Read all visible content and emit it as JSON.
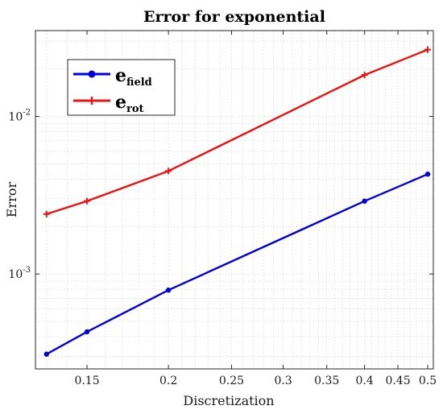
{
  "chart_data": {
    "type": "line",
    "title": "Error for exponential",
    "xlabel": "Discretization",
    "ylabel": "Error",
    "xscale": "log",
    "yscale": "log",
    "xlim": [
      0.125,
      0.51
    ],
    "ylim": [
      0.00025,
      0.035
    ],
    "x_ticks": [
      0.15,
      0.2,
      0.25,
      0.3,
      0.35,
      0.4,
      0.45,
      0.5
    ],
    "x_tick_labels": [
      "0.15",
      "0.2",
      "0.25",
      "0.3",
      "0.35",
      "0.4",
      "0.45",
      "0.5"
    ],
    "y_ticks": [
      0.001,
      0.01
    ],
    "y_tick_labels": [
      {
        "base": "10",
        "exp": "-3"
      },
      {
        "base": "10",
        "exp": "-2"
      }
    ],
    "grid": true,
    "legend_position": "top-left",
    "series": [
      {
        "name": "e",
        "name_subscript": "field",
        "color": "#0000dd",
        "marker": "circle",
        "x": [
          0.13,
          0.15,
          0.2,
          0.4,
          0.5
        ],
        "y": [
          0.00031,
          0.00043,
          0.00079,
          0.0029,
          0.0043
        ]
      },
      {
        "name": "e",
        "name_subscript": "rot",
        "color": "#ee1111",
        "marker": "plus",
        "x": [
          0.13,
          0.15,
          0.2,
          0.4,
          0.5
        ],
        "y": [
          0.0024,
          0.0029,
          0.0045,
          0.0183,
          0.0265
        ]
      }
    ]
  }
}
